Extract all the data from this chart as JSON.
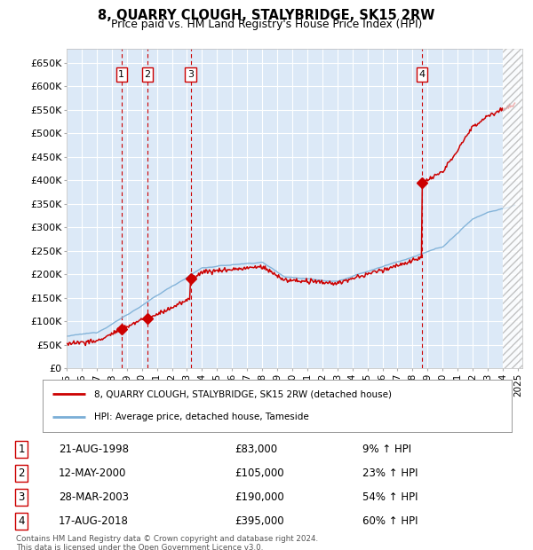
{
  "title": "8, QUARRY CLOUGH, STALYBRIDGE, SK15 2RW",
  "subtitle": "Price paid vs. HM Land Registry's House Price Index (HPI)",
  "background_color": "#ffffff",
  "plot_bg_color": "#dce9f7",
  "hpi_color": "#7aaed6",
  "price_color": "#cc0000",
  "legend_entries": [
    "8, QUARRY CLOUGH, STALYBRIDGE, SK15 2RW (detached house)",
    "HPI: Average price, detached house, Tameside"
  ],
  "table_rows": [
    [
      "1",
      "21-AUG-1998",
      "£83,000",
      "9% ↑ HPI"
    ],
    [
      "2",
      "12-MAY-2000",
      "£105,000",
      "23% ↑ HPI"
    ],
    [
      "3",
      "28-MAR-2003",
      "£190,000",
      "54% ↑ HPI"
    ],
    [
      "4",
      "17-AUG-2018",
      "£395,000",
      "60% ↑ HPI"
    ]
  ],
  "footer": "Contains HM Land Registry data © Crown copyright and database right 2024.\nThis data is licensed under the Open Government Licence v3.0.",
  "ylim": [
    0,
    680000
  ],
  "yticks": [
    0,
    50000,
    100000,
    150000,
    200000,
    250000,
    300000,
    350000,
    400000,
    450000,
    500000,
    550000,
    600000,
    650000
  ],
  "sale_year_floats": [
    1998.65,
    2000.37,
    2003.24,
    2018.63
  ],
  "sale_prices": [
    83000,
    105000,
    190000,
    395000
  ],
  "sale_labels": [
    "1",
    "2",
    "3",
    "4"
  ],
  "xlim_start": 1995.0,
  "xlim_end": 2025.3,
  "hatch_start": 2024.0
}
